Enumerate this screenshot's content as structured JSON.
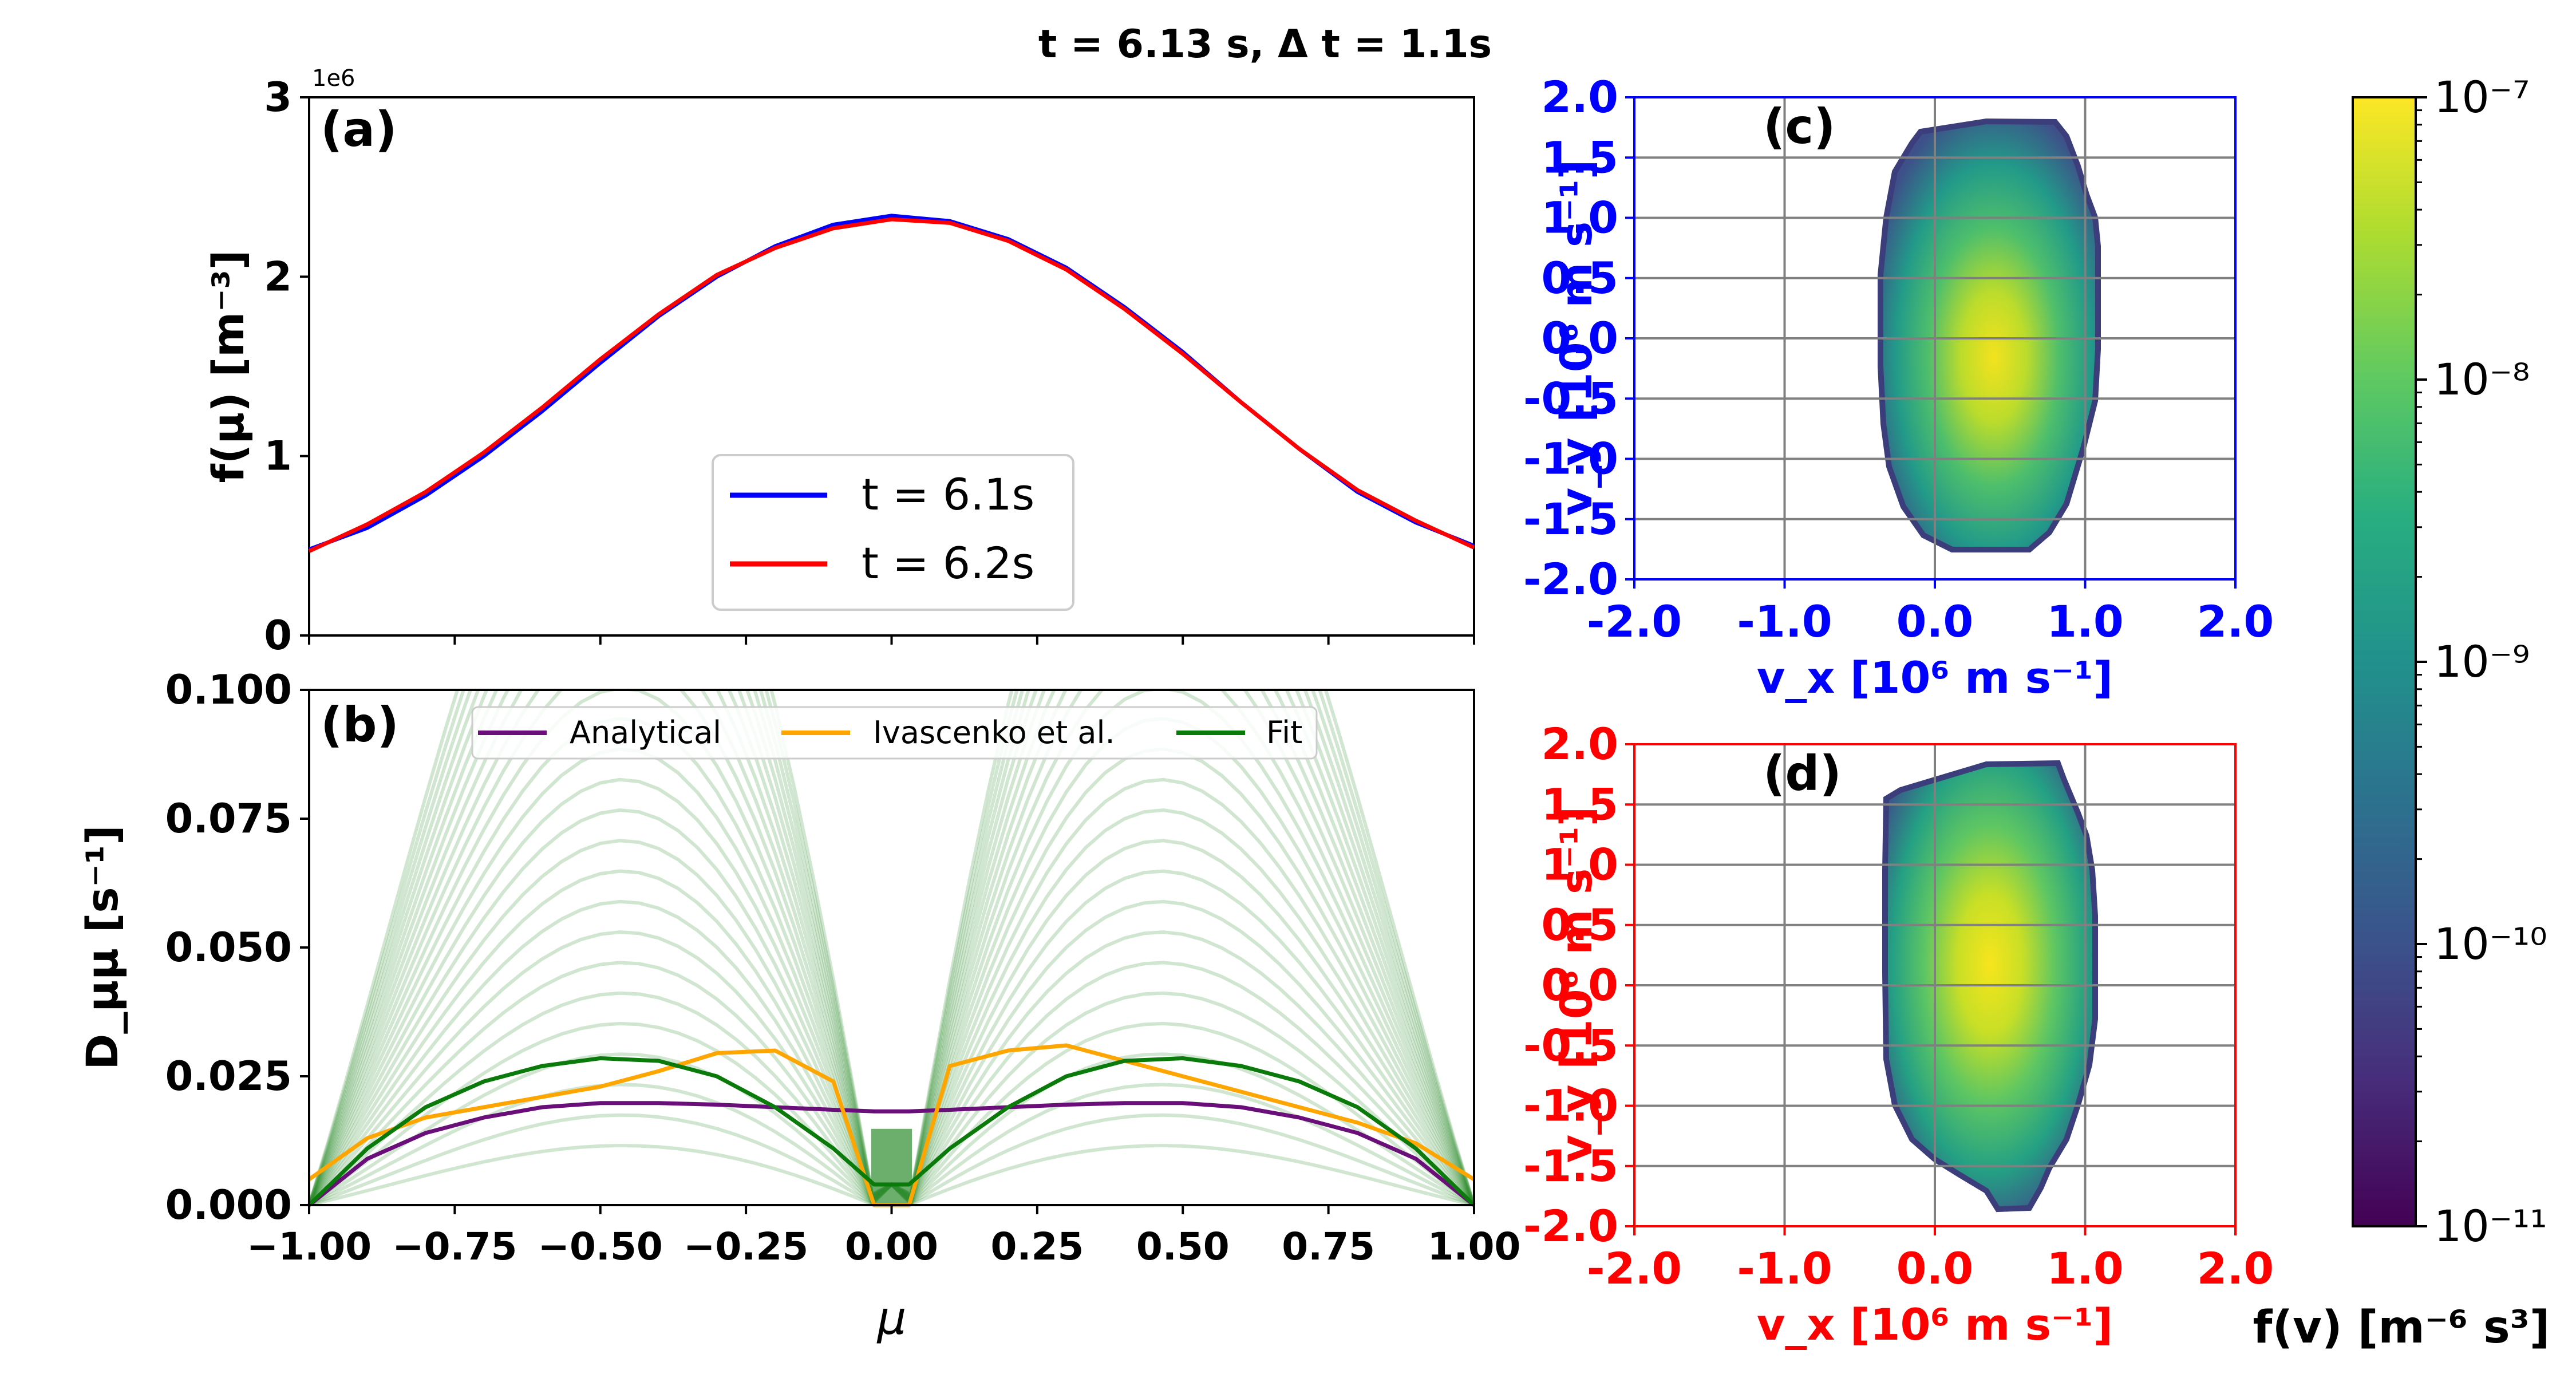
{
  "suptitle": "t = 6.13 s, Δ t = 1.1s",
  "colors": {
    "blue": "#0000ff",
    "red": "#ff0000",
    "purple": "#6a0f79",
    "orange": "#ffa500",
    "green": "#0a7a0a",
    "fill_green": "#2e8b2e"
  },
  "chart_data": [
    {
      "panel": "(a)",
      "type": "line",
      "ylabel": "f(μ) [m⁻³]",
      "offset_text": "1e6",
      "xlim": [
        -1,
        1
      ],
      "ylim": [
        0,
        3
      ],
      "xticks": [
        -1,
        -0.75,
        -0.5,
        -0.25,
        0,
        0.25,
        0.5,
        0.75,
        1
      ],
      "yticks": [
        0,
        1,
        2,
        3
      ],
      "ytick_labels": [
        "0",
        "1",
        "2",
        "3"
      ],
      "legend_position": "lower-center",
      "x": [
        -1,
        -0.9,
        -0.8,
        -0.7,
        -0.6,
        -0.5,
        -0.4,
        -0.3,
        -0.2,
        -0.1,
        0,
        0.1,
        0.2,
        0.3,
        0.4,
        0.5,
        0.6,
        0.7,
        0.8,
        0.9,
        1
      ],
      "series": [
        {
          "name": "t = 6.1s",
          "color": "#0000ff",
          "values": [
            0.48,
            0.6,
            0.78,
            1.0,
            1.25,
            1.52,
            1.78,
            2.0,
            2.17,
            2.29,
            2.34,
            2.31,
            2.21,
            2.05,
            1.83,
            1.58,
            1.3,
            1.04,
            0.8,
            0.63,
            0.5
          ]
        },
        {
          "name": "t = 6.2s",
          "color": "#ff0000",
          "values": [
            0.47,
            0.62,
            0.8,
            1.02,
            1.27,
            1.54,
            1.79,
            2.01,
            2.16,
            2.27,
            2.32,
            2.3,
            2.2,
            2.04,
            1.82,
            1.57,
            1.3,
            1.04,
            0.81,
            0.64,
            0.49
          ]
        }
      ]
    },
    {
      "panel": "(b)",
      "type": "line",
      "xlabel": "μ",
      "ylabel": "D_μμ [s⁻¹]",
      "xlim": [
        -1,
        1
      ],
      "ylim": [
        0,
        0.1
      ],
      "xticks": [
        -1,
        -0.75,
        -0.5,
        -0.25,
        0,
        0.25,
        0.5,
        0.75,
        1
      ],
      "xtick_labels": [
        "−1.00",
        "−0.75",
        "−0.50",
        "−0.25",
        "0.00",
        "0.25",
        "0.50",
        "0.75",
        "1.00"
      ],
      "yticks": [
        0,
        0.025,
        0.05,
        0.075,
        0.1
      ],
      "ytick_labels": [
        "0.000",
        "0.025",
        "0.050",
        "0.075",
        "0.100"
      ],
      "legend_position": "top-center",
      "x": [
        -1,
        -0.9,
        -0.8,
        -0.7,
        -0.6,
        -0.5,
        -0.4,
        -0.3,
        -0.2,
        -0.1,
        -0.03,
        0.03,
        0.1,
        0.2,
        0.3,
        0.4,
        0.5,
        0.6,
        0.7,
        0.8,
        0.9,
        1
      ],
      "series": [
        {
          "name": "Analytical",
          "color": "#6a0f79",
          "values": [
            0.0,
            0.009,
            0.014,
            0.017,
            0.019,
            0.0198,
            0.0198,
            0.0195,
            0.019,
            0.0185,
            0.0182,
            0.0182,
            0.0185,
            0.019,
            0.0195,
            0.0198,
            0.0198,
            0.019,
            0.017,
            0.014,
            0.009,
            0.0
          ]
        },
        {
          "name": "Ivascenko et al.",
          "color": "#ffa500",
          "values": [
            0.005,
            0.013,
            0.017,
            0.019,
            0.021,
            0.023,
            0.026,
            0.0295,
            0.03,
            0.024,
            0.0,
            0.0,
            0.027,
            0.03,
            0.031,
            0.028,
            0.025,
            0.022,
            0.019,
            0.016,
            0.012,
            0.005
          ]
        },
        {
          "name": "Fit",
          "color": "#0a7a0a",
          "values": [
            0.0,
            0.011,
            0.019,
            0.024,
            0.027,
            0.0285,
            0.028,
            0.025,
            0.019,
            0.011,
            0.004,
            0.004,
            0.011,
            0.019,
            0.025,
            0.028,
            0.0285,
            0.027,
            0.024,
            0.019,
            0.011,
            0.0
          ]
        }
      ]
    },
    {
      "panel": "(c)",
      "type": "heatmap",
      "xlabel": "v_x [10⁶ m s⁻¹]",
      "ylabel": "v_y [10⁶ m s⁻¹]",
      "axis_color": "#0000ff",
      "xlim": [
        -2,
        2
      ],
      "ylim": [
        -2,
        2
      ],
      "ticks": [
        "-2.0",
        "-1.5",
        "-1.0",
        "-0.5",
        "0.0",
        "0.5",
        "1.0",
        "1.5",
        "2.0"
      ],
      "xtick_labels": [
        "-2.0",
        "-1.0",
        "0.0",
        "1.0",
        "2.0"
      ]
    },
    {
      "panel": "(d)",
      "type": "heatmap",
      "xlabel": "v_x [10⁶ m s⁻¹]",
      "ylabel": "v_y [10⁶ m s⁻¹]",
      "axis_color": "#ff0000",
      "xlim": [
        -2,
        2
      ],
      "ylim": [
        -2,
        2
      ],
      "ticks": [
        "-2.0",
        "-1.5",
        "-1.0",
        "-0.5",
        "0.0",
        "0.5",
        "1.0",
        "1.5",
        "2.0"
      ],
      "xtick_labels": [
        "-2.0",
        "-1.0",
        "0.0",
        "1.0",
        "2.0"
      ]
    },
    {
      "type": "colorbar",
      "label": "f(v) [m⁻⁶ s³]",
      "scale": "log",
      "range": [
        1e-11,
        1e-07
      ],
      "ticks": [
        "10⁻⁷",
        "10⁻⁸",
        "10⁻⁹",
        "10⁻¹⁰",
        "10⁻¹¹"
      ]
    }
  ]
}
